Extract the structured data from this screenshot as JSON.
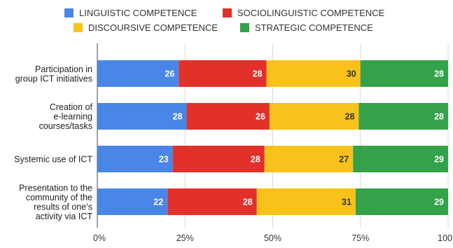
{
  "chart_data": {
    "type": "bar",
    "orientation": "horizontal",
    "stacking": "percent",
    "legend_position": "top",
    "grid": true,
    "xlim": [
      0,
      100
    ],
    "ticks": [
      "0%",
      "25%",
      "50%",
      "75%",
      "100"
    ],
    "categories": [
      [
        "Participation in",
        "group ICT initiatives"
      ],
      [
        "Creation of",
        "e-learning",
        "courses/tasks"
      ],
      [
        "Systemic use of ICT"
      ],
      [
        "Presentation to the",
        "community of the",
        "results of one’s",
        "activity via ICT"
      ]
    ],
    "series": [
      {
        "name": "LINGUISTIC COMPETENCE",
        "color": "#4a86e8",
        "label_color": "#ffffff",
        "values": [
          26,
          28,
          23,
          22
        ]
      },
      {
        "name": "SOCIOLINGUISTIC COMPETENCE",
        "color": "#e2302b",
        "label_color": "#ffffff",
        "values": [
          28,
          26,
          28,
          28
        ]
      },
      {
        "name": "DISCOURSIVE COMPETENCE",
        "color": "#f8c21a",
        "label_color": "#333333",
        "values": [
          30,
          28,
          27,
          31
        ]
      },
      {
        "name": "STRATEGIC COMPETENCE",
        "color": "#33a24a",
        "label_color": "#ffffff",
        "values": [
          28,
          28,
          29,
          29
        ]
      }
    ]
  }
}
